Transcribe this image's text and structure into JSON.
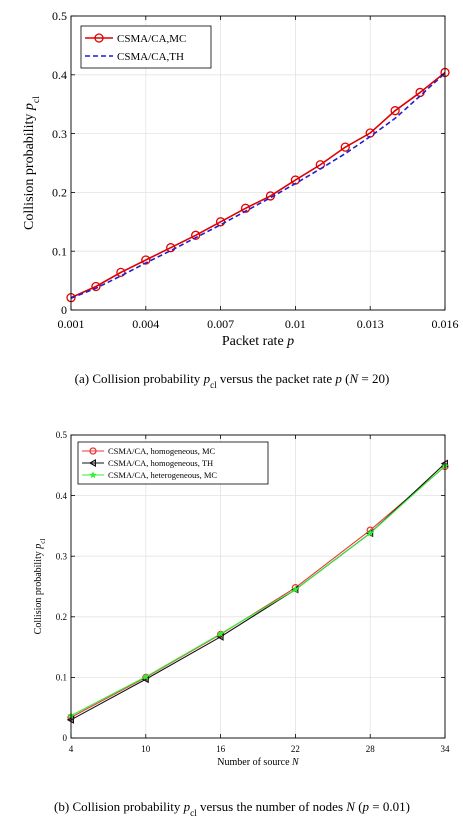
{
  "chart_data": [
    {
      "type": "line",
      "xlabel": "Packet rate p",
      "ylabel": "Collision probability p_cl",
      "caption": "(a) Collision probability p_cl versus the packet rate p (N = 20)",
      "xlim": [
        0.001,
        0.016
      ],
      "ylim": [
        0,
        0.5
      ],
      "x_ticks": [
        "0.001",
        "0.004",
        "0.007",
        "0.01",
        "0.013",
        "0.016"
      ],
      "y_ticks": [
        "0",
        "0.1",
        "0.2",
        "0.3",
        "0.4",
        "0.5"
      ],
      "grid": true,
      "legend_position": "top-left",
      "x": [
        0.001,
        0.002,
        0.003,
        0.004,
        0.005,
        0.006,
        0.007,
        0.008,
        0.009,
        0.01,
        0.011,
        0.012,
        0.013,
        0.014,
        0.015,
        0.016
      ],
      "series": [
        {
          "name": "CSMA/CA,MC",
          "color": "#e00000",
          "line": "solid",
          "marker": "circle",
          "values": [
            0.021,
            0.04,
            0.064,
            0.085,
            0.106,
            0.127,
            0.15,
            0.173,
            0.194,
            0.221,
            0.247,
            0.277,
            0.301,
            0.339,
            0.37,
            0.404
          ]
        },
        {
          "name": "CSMA/CA,TH",
          "color": "#1f1fd0",
          "line": "dashed",
          "marker": "none",
          "values": [
            0.02,
            0.037,
            0.058,
            0.08,
            0.101,
            0.123,
            0.145,
            0.168,
            0.191,
            0.215,
            0.24,
            0.266,
            0.295,
            0.326,
            0.364,
            0.403
          ]
        }
      ]
    },
    {
      "type": "line",
      "xlabel": "Number of source N",
      "ylabel": "Collision probability p_cl",
      "caption": "(b) Collision probability p_cl versus the number of nodes N (p = 0.01)",
      "xlim": [
        4,
        34
      ],
      "ylim": [
        0,
        0.5
      ],
      "x_ticks": [
        "4",
        "10",
        "16",
        "22",
        "28",
        "34"
      ],
      "y_ticks": [
        "0",
        "0.1",
        "0.2",
        "0.3",
        "0.4",
        "0.5"
      ],
      "grid": true,
      "legend_position": "top-left",
      "x": [
        4,
        10,
        16,
        22,
        28,
        34
      ],
      "series": [
        {
          "name": "CSMA/CA, homogeneous, MC",
          "color": "#e8393a",
          "line": "solid",
          "marker": "circle",
          "values": [
            0.034,
            0.1,
            0.171,
            0.248,
            0.343,
            0.448
          ]
        },
        {
          "name": "CSMA/CA, homogeneous, TH",
          "color": "#111111",
          "line": "solid",
          "marker": "triangle-left",
          "values": [
            0.03,
            0.097,
            0.167,
            0.245,
            0.338,
            0.453
          ]
        },
        {
          "name": "CSMA/CA, heterogeneous, MC",
          "color": "#33ee33",
          "line": "solid",
          "marker": "star",
          "values": [
            0.037,
            0.101,
            0.172,
            0.245,
            0.338,
            0.449
          ]
        }
      ]
    }
  ]
}
